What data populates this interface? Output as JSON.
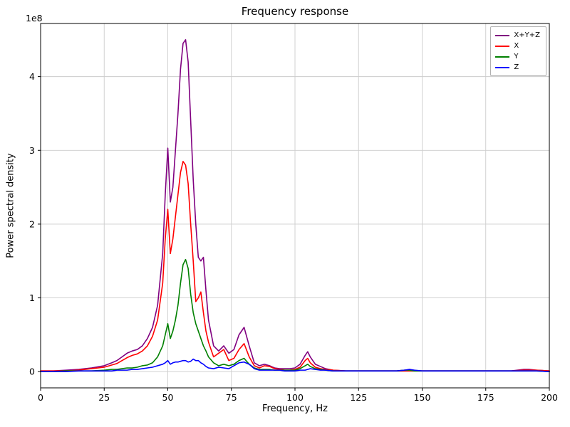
{
  "chart_data": {
    "type": "line",
    "title": "Frequency response",
    "xlabel": "Frequency, Hz",
    "ylabel": "Power spectral density",
    "y_offset_label": "1e8",
    "y_unit_scale": 100000000,
    "xlim": [
      0,
      200
    ],
    "ylim": [
      -0.22,
      4.72
    ],
    "grid": true,
    "legend_position": "upper right",
    "x_ticks": [
      0,
      25,
      50,
      75,
      100,
      125,
      150,
      175,
      200
    ],
    "x_tick_labels": [
      "0",
      "25",
      "50",
      "75",
      "100",
      "125",
      "150",
      "175",
      "200"
    ],
    "y_ticks": [
      0,
      1,
      2,
      3,
      4
    ],
    "y_tick_labels": [
      "0",
      "1",
      "2",
      "3",
      "4"
    ],
    "colors": {
      "grid": "#cccccc",
      "axis": "#000000",
      "text": "#000000",
      "background": "#ffffff"
    },
    "x": [
      0,
      5,
      10,
      15,
      20,
      25,
      28,
      30,
      32,
      34,
      36,
      38,
      40,
      42,
      44,
      46,
      48,
      49,
      50,
      51,
      52,
      53,
      54,
      55,
      56,
      57,
      58,
      59,
      60,
      61,
      62,
      63,
      64,
      65,
      66,
      68,
      70,
      72,
      74,
      76,
      78,
      80,
      82,
      84,
      86,
      88,
      90,
      92,
      94,
      96,
      98,
      100,
      102,
      104,
      105,
      106,
      108,
      110,
      112,
      115,
      120,
      125,
      130,
      135,
      140,
      143,
      145,
      147,
      150,
      155,
      160,
      165,
      170,
      175,
      180,
      185,
      190,
      192,
      195,
      200
    ],
    "series": [
      {
        "name": "X+Y+Z",
        "color": "#800080",
        "values": [
          0.01,
          0.01,
          0.02,
          0.03,
          0.05,
          0.08,
          0.12,
          0.15,
          0.2,
          0.25,
          0.28,
          0.3,
          0.35,
          0.45,
          0.6,
          0.9,
          1.6,
          2.4,
          3.03,
          2.3,
          2.5,
          3.0,
          3.5,
          4.1,
          4.45,
          4.5,
          4.2,
          3.4,
          2.6,
          2.0,
          1.55,
          1.5,
          1.55,
          1.1,
          0.7,
          0.35,
          0.28,
          0.35,
          0.25,
          0.3,
          0.5,
          0.6,
          0.35,
          0.12,
          0.08,
          0.1,
          0.08,
          0.05,
          0.04,
          0.04,
          0.04,
          0.05,
          0.1,
          0.22,
          0.27,
          0.2,
          0.1,
          0.07,
          0.04,
          0.02,
          0.01,
          0.01,
          0.01,
          0.01,
          0.01,
          0.02,
          0.02,
          0.01,
          0.01,
          0.01,
          0.01,
          0.01,
          0.01,
          0.01,
          0.01,
          0.01,
          0.03,
          0.03,
          0.02,
          0.01
        ]
      },
      {
        "name": "X",
        "color": "#ff0000",
        "values": [
          0.01,
          0.01,
          0.01,
          0.02,
          0.04,
          0.06,
          0.09,
          0.11,
          0.15,
          0.19,
          0.22,
          0.24,
          0.28,
          0.35,
          0.48,
          0.7,
          1.2,
          1.8,
          2.2,
          1.6,
          1.8,
          2.1,
          2.4,
          2.7,
          2.85,
          2.8,
          2.55,
          2.0,
          1.5,
          0.95,
          1.0,
          1.08,
          0.8,
          0.55,
          0.4,
          0.2,
          0.25,
          0.3,
          0.15,
          0.18,
          0.3,
          0.38,
          0.2,
          0.08,
          0.05,
          0.08,
          0.07,
          0.04,
          0.03,
          0.02,
          0.02,
          0.03,
          0.06,
          0.15,
          0.18,
          0.12,
          0.06,
          0.04,
          0.03,
          0.02,
          0.01,
          0.01,
          0.01,
          0.01,
          0.01,
          0.01,
          0.01,
          0.01,
          0.01,
          0.01,
          0.01,
          0.01,
          0.01,
          0.01,
          0.01,
          0.01,
          0.02,
          0.02,
          0.02,
          0.01
        ]
      },
      {
        "name": "Y",
        "color": "#008000",
        "values": [
          0.0,
          0.0,
          0.01,
          0.01,
          0.01,
          0.02,
          0.03,
          0.03,
          0.04,
          0.05,
          0.05,
          0.06,
          0.08,
          0.09,
          0.12,
          0.2,
          0.35,
          0.5,
          0.65,
          0.45,
          0.55,
          0.7,
          0.9,
          1.2,
          1.45,
          1.52,
          1.4,
          1.05,
          0.8,
          0.65,
          0.55,
          0.45,
          0.35,
          0.28,
          0.2,
          0.12,
          0.08,
          0.1,
          0.08,
          0.1,
          0.15,
          0.18,
          0.1,
          0.05,
          0.03,
          0.03,
          0.03,
          0.02,
          0.02,
          0.02,
          0.02,
          0.02,
          0.04,
          0.08,
          0.1,
          0.07,
          0.04,
          0.03,
          0.02,
          0.01,
          0.01,
          0.01,
          0.01,
          0.01,
          0.01,
          0.02,
          0.02,
          0.01,
          0.01,
          0.01,
          0.01,
          0.01,
          0.01,
          0.01,
          0.01,
          0.01,
          0.01,
          0.01,
          0.01,
          0.0
        ]
      },
      {
        "name": "Z",
        "color": "#0000ff",
        "values": [
          0.0,
          0.0,
          0.0,
          0.01,
          0.01,
          0.01,
          0.01,
          0.02,
          0.02,
          0.02,
          0.03,
          0.03,
          0.04,
          0.05,
          0.06,
          0.08,
          0.1,
          0.12,
          0.15,
          0.1,
          0.12,
          0.13,
          0.13,
          0.14,
          0.15,
          0.15,
          0.13,
          0.14,
          0.17,
          0.15,
          0.15,
          0.12,
          0.1,
          0.07,
          0.05,
          0.04,
          0.06,
          0.05,
          0.04,
          0.08,
          0.12,
          0.13,
          0.1,
          0.04,
          0.02,
          0.02,
          0.02,
          0.02,
          0.02,
          0.01,
          0.01,
          0.01,
          0.02,
          0.02,
          0.03,
          0.04,
          0.03,
          0.02,
          0.02,
          0.01,
          0.01,
          0.01,
          0.01,
          0.01,
          0.01,
          0.02,
          0.03,
          0.02,
          0.01,
          0.01,
          0.01,
          0.01,
          0.01,
          0.01,
          0.01,
          0.01,
          0.01,
          0.01,
          0.01,
          0.0
        ]
      }
    ]
  }
}
